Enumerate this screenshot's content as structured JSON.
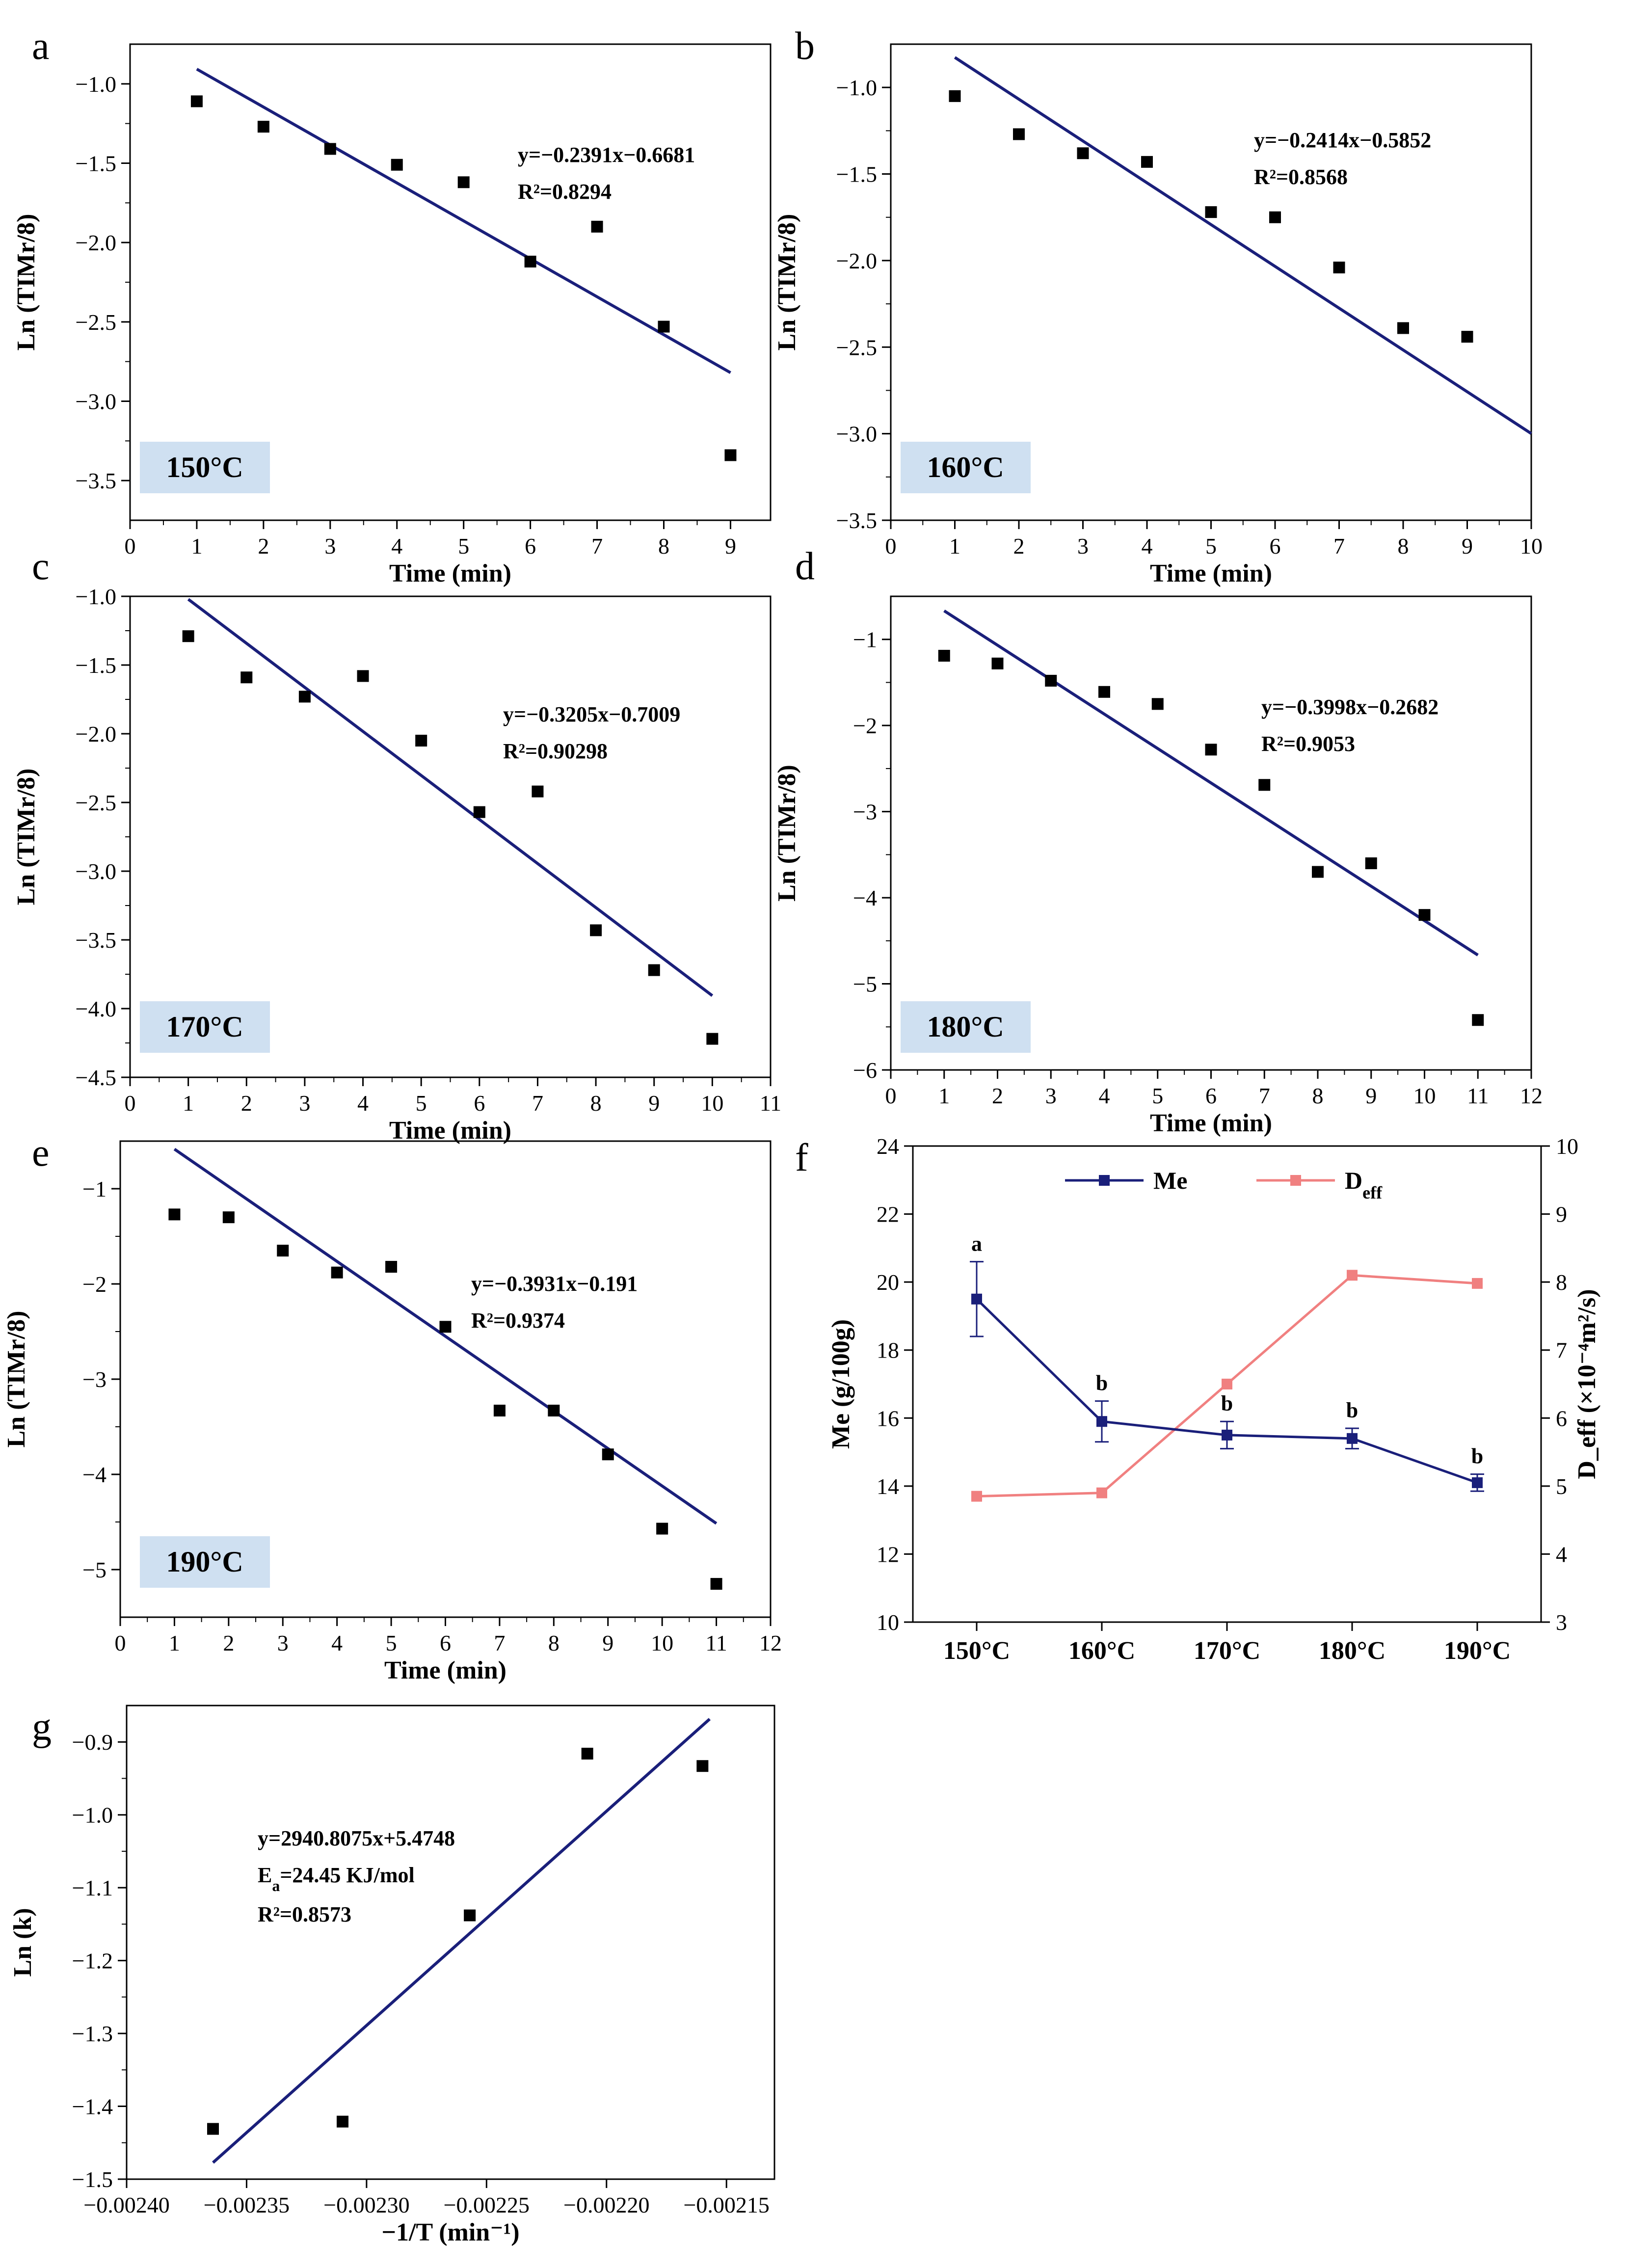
{
  "chart_data": [
    {
      "id": "a",
      "type": "scatter",
      "panel_label": "a",
      "xlabel": "Time (min)",
      "ylabel": "Ln (TIMr/8)",
      "xlim": [
        0,
        9.6
      ],
      "ylim": [
        -3.75,
        -0.75
      ],
      "xticks": [
        0,
        1,
        2,
        3,
        4,
        5,
        6,
        7,
        8,
        9
      ],
      "yticks": [
        -3.5,
        -3.0,
        -2.5,
        -2.0,
        -1.5,
        -1.0
      ],
      "xtick_labels": [
        "0",
        "1",
        "2",
        "3",
        "4",
        "5",
        "6",
        "7",
        "8",
        "9"
      ],
      "ytick_labels": [
        "−3.5",
        "−3.0",
        "−2.5",
        "−2.0",
        "−1.5",
        "−1.0"
      ],
      "x": [
        1,
        2,
        3,
        4,
        5,
        6,
        7,
        8,
        9
      ],
      "y": [
        -1.11,
        -1.27,
        -1.41,
        -1.51,
        -1.62,
        -2.12,
        -1.9,
        -2.53,
        -3.34
      ],
      "fit": {
        "slope": -0.2391,
        "intercept": -0.6681,
        "x_range": [
          1,
          9
        ]
      },
      "annotations": [
        "y=−0.2391x−0.6681",
        "R²=0.8294"
      ],
      "temperature": "150°C"
    },
    {
      "id": "b",
      "type": "scatter",
      "panel_label": "b",
      "xlabel": "Time (min)",
      "ylabel": "Ln (TIMr/8)",
      "xlim": [
        0,
        10
      ],
      "ylim": [
        -3.5,
        -0.75
      ],
      "xticks": [
        0,
        1,
        2,
        3,
        4,
        5,
        6,
        7,
        8,
        9,
        10
      ],
      "yticks": [
        -3.5,
        -3.0,
        -2.5,
        -2.0,
        -1.5,
        -1.0
      ],
      "xtick_labels": [
        "0",
        "1",
        "2",
        "3",
        "4",
        "5",
        "6",
        "7",
        "8",
        "9",
        "10"
      ],
      "ytick_labels": [
        "−3.5",
        "−3.0",
        "−2.5",
        "−2.0",
        "−1.5",
        "−1.0"
      ],
      "x": [
        1,
        2,
        3,
        4,
        5,
        6,
        7,
        8,
        9
      ],
      "y": [
        -1.05,
        -1.27,
        -1.38,
        -1.43,
        -1.72,
        -1.75,
        -2.04,
        -2.39,
        -2.44
      ],
      "fit": {
        "slope": -0.2414,
        "intercept": -0.5852,
        "x_range": [
          1,
          10
        ]
      },
      "annotations": [
        "y=−0.2414x−0.5852",
        "R²=0.8568"
      ],
      "temperature": "160°C"
    },
    {
      "id": "c",
      "type": "scatter",
      "panel_label": "c",
      "xlabel": "Time (min)",
      "ylabel": "Ln (TIMr/8)",
      "xlim": [
        0,
        11
      ],
      "ylim": [
        -4.5,
        -1.0
      ],
      "xticks": [
        0,
        1,
        2,
        3,
        4,
        5,
        6,
        7,
        8,
        9,
        10,
        11
      ],
      "yticks": [
        -4.5,
        -4.0,
        -3.5,
        -3.0,
        -2.5,
        -2.0,
        -1.5,
        -1.0
      ],
      "xtick_labels": [
        "0",
        "1",
        "2",
        "3",
        "4",
        "5",
        "6",
        "7",
        "8",
        "9",
        "10",
        "11"
      ],
      "ytick_labels": [
        "−4.5",
        "−4.0",
        "−3.5",
        "−3.0",
        "−2.5",
        "−2.0",
        "−1.5",
        "−1.0"
      ],
      "x": [
        1,
        2,
        3,
        4,
        5,
        6,
        7,
        8,
        9,
        10
      ],
      "y": [
        -1.29,
        -1.59,
        -1.73,
        -1.58,
        -2.05,
        -2.57,
        -2.42,
        -3.43,
        -3.72,
        -4.22
      ],
      "fit": {
        "slope": -0.3205,
        "intercept": -0.7009,
        "x_range": [
          1,
          10
        ]
      },
      "annotations": [
        "y=−0.3205x−0.7009",
        "R²=0.90298"
      ],
      "temperature": "170°C"
    },
    {
      "id": "d",
      "type": "scatter",
      "panel_label": "d",
      "xlabel": "Time (min)",
      "ylabel": "Ln (TIMr/8)",
      "xlim": [
        0,
        12
      ],
      "ylim": [
        -6,
        -0.5
      ],
      "xticks": [
        0,
        1,
        2,
        3,
        4,
        5,
        6,
        7,
        8,
        9,
        10,
        11,
        12
      ],
      "yticks": [
        -6,
        -5,
        -4,
        -3,
        -2,
        -1
      ],
      "xtick_labels": [
        "0",
        "1",
        "2",
        "3",
        "4",
        "5",
        "6",
        "7",
        "8",
        "9",
        "10",
        "11",
        "12"
      ],
      "ytick_labels": [
        "−6",
        "−5",
        "−4",
        "−3",
        "−2",
        "−1"
      ],
      "x": [
        1,
        2,
        3,
        4,
        5,
        6,
        7,
        8,
        9,
        10,
        11
      ],
      "y": [
        -1.19,
        -1.28,
        -1.48,
        -1.61,
        -1.75,
        -2.28,
        -2.69,
        -3.7,
        -3.6,
        -4.2,
        -5.42
      ],
      "fit": {
        "slope": -0.3998,
        "intercept": -0.2682,
        "x_range": [
          1,
          11
        ]
      },
      "annotations": [
        "y=−0.3998x−0.2682",
        "R²=0.9053"
      ],
      "temperature": "180°C"
    },
    {
      "id": "e",
      "type": "scatter",
      "panel_label": "e",
      "xlabel": "Time (min)",
      "ylabel": "Ln (TIMr/8)",
      "xlim": [
        0,
        12
      ],
      "ylim": [
        -5.5,
        -0.5
      ],
      "xticks": [
        0,
        1,
        2,
        3,
        4,
        5,
        6,
        7,
        8,
        9,
        10,
        11,
        12
      ],
      "yticks": [
        -5,
        -4,
        -3,
        -2,
        -1
      ],
      "xtick_labels": [
        "0",
        "1",
        "2",
        "3",
        "4",
        "5",
        "6",
        "7",
        "8",
        "9",
        "10",
        "11",
        "12"
      ],
      "ytick_labels": [
        "−5",
        "−4",
        "−3",
        "−2",
        "−1"
      ],
      "x": [
        1,
        2,
        3,
        4,
        5,
        6,
        7,
        8,
        9,
        10,
        11
      ],
      "y": [
        -1.27,
        -1.3,
        -1.65,
        -1.88,
        -1.82,
        -2.45,
        -3.33,
        -3.33,
        -3.79,
        -4.57,
        -5.15
      ],
      "fit": {
        "slope": -0.3931,
        "intercept": -0.191,
        "x_range": [
          1,
          11
        ]
      },
      "annotations": [
        "y=−0.3931x−0.191",
        "R²=0.9374"
      ],
      "temperature": "190°C"
    },
    {
      "id": "f",
      "type": "line",
      "panel_label": "f",
      "categories": [
        "150°C",
        "160°C",
        "170°C",
        "180°C",
        "190°C"
      ],
      "ylabel": "Me (g/100g)",
      "ylim": [
        10,
        24
      ],
      "yticks": [
        10,
        12,
        14,
        16,
        18,
        20,
        22,
        24
      ],
      "ytick_labels": [
        "10",
        "12",
        "14",
        "16",
        "18",
        "20",
        "22",
        "24"
      ],
      "y2label": "D_eff (×10⁻⁴m²/s)",
      "y2lim": [
        3,
        10
      ],
      "y2ticks": [
        3,
        4,
        5,
        6,
        7,
        8,
        9,
        10
      ],
      "y2tick_labels": [
        "3",
        "4",
        "5",
        "6",
        "7",
        "8",
        "9",
        "10"
      ],
      "series": [
        {
          "name": "Me",
          "axis": "left",
          "color": "#1a1f7a",
          "values": [
            19.5,
            15.9,
            15.5,
            15.4,
            14.1
          ],
          "errors": [
            1.1,
            0.6,
            0.4,
            0.3,
            0.25
          ],
          "labels": [
            "a",
            "b",
            "b",
            "b",
            "b"
          ]
        },
        {
          "name": "D",
          "name_sub": "eff",
          "axis": "right",
          "color": "#f08080",
          "values": [
            4.85,
            4.9,
            6.5,
            8.1,
            7.98
          ]
        }
      ]
    },
    {
      "id": "g",
      "type": "scatter",
      "panel_label": "g",
      "xlabel": "−1/T (min⁻¹)",
      "ylabel": "Ln (k)",
      "xlim": [
        -0.0024,
        -0.00213
      ],
      "ylim": [
        -1.5,
        -0.85
      ],
      "xticks": [
        -0.0024,
        -0.00235,
        -0.0023,
        -0.00225,
        -0.0022,
        -0.00215
      ],
      "yticks": [
        -1.5,
        -1.4,
        -1.3,
        -1.2,
        -1.1,
        -1.0,
        -0.9
      ],
      "xtick_labels": [
        "−0.00240",
        "−0.00235",
        "−0.00230",
        "−0.00225",
        "−0.00220",
        "−0.00215"
      ],
      "ytick_labels": [
        "−1.5",
        "−1.4",
        "−1.3",
        "−1.2",
        "−1.1",
        "−1.0",
        "−0.9"
      ],
      "x": [
        -0.002364,
        -0.00231,
        -0.002257,
        -0.002208,
        -0.00216
      ],
      "y": [
        -1.431,
        -1.421,
        -1.138,
        -0.916,
        -0.933
      ],
      "fit": {
        "slope": 2940.8075,
        "intercept": 5.4748,
        "x_range": [
          -0.002364,
          -0.00216
        ]
      },
      "annotations": [
        "y=2940.8075x+5.4748",
        "E_a=24.45 KJ/mol",
        "R²=0.8573"
      ],
      "ea_prefix": "E",
      "ea_sub": "a",
      "ea_rest": "=24.45 KJ/mol"
    }
  ]
}
